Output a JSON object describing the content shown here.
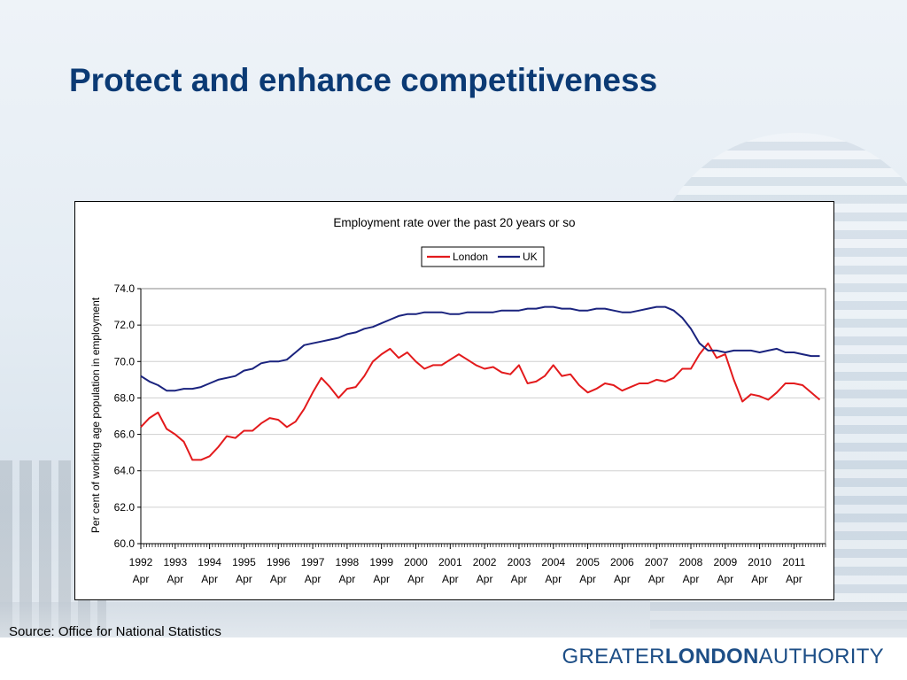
{
  "slide": {
    "title": "Protect and enhance competitiveness",
    "source": "Source: Office for National Statistics",
    "logo": {
      "part1": "GREATER",
      "part2": "LONDON",
      "part3": "AUTHORITY"
    }
  },
  "colors": {
    "title": "#0b3a74",
    "london": "#e31a1c",
    "uk": "#1a237e",
    "logo": "#1d4e86"
  },
  "chart_data": {
    "type": "line",
    "title": "Employment rate over the past 20 years or so",
    "xlabel": "",
    "ylabel": "Per cent of working age population in employment",
    "ylim": [
      60,
      74
    ],
    "yticks": [
      "60.0",
      "62.0",
      "64.0",
      "66.0",
      "68.0",
      "70.0",
      "72.0",
      "74.0"
    ],
    "xticks": [
      "1992",
      "1993",
      "1994",
      "1995",
      "1996",
      "1997",
      "1998",
      "1999",
      "2000",
      "2001",
      "2002",
      "2003",
      "2004",
      "2005",
      "2006",
      "2007",
      "2008",
      "2009",
      "2010",
      "2011"
    ],
    "xtick_sublabel": "Apr",
    "legend_position": "top",
    "x_start": "1992 Apr",
    "x_step": "quarter",
    "series": [
      {
        "name": "London",
        "color": "#e31a1c",
        "values": [
          66.4,
          66.9,
          67.2,
          66.3,
          66.0,
          65.6,
          64.6,
          64.6,
          64.8,
          65.3,
          65.9,
          65.8,
          66.2,
          66.2,
          66.6,
          66.9,
          66.8,
          66.4,
          66.7,
          67.4,
          68.3,
          69.1,
          68.6,
          68.0,
          68.5,
          68.6,
          69.2,
          70.0,
          70.4,
          70.7,
          70.2,
          70.5,
          70.0,
          69.6,
          69.8,
          69.8,
          70.1,
          70.4,
          70.1,
          69.8,
          69.6,
          69.7,
          69.4,
          69.3,
          69.8,
          68.8,
          68.9,
          69.2,
          69.8,
          69.2,
          69.3,
          68.7,
          68.3,
          68.5,
          68.8,
          68.7,
          68.4,
          68.6,
          68.8,
          68.8,
          69.0,
          68.9,
          69.1,
          69.6,
          69.6,
          70.4,
          71.0,
          70.2,
          70.4,
          69.0,
          67.8,
          68.2,
          68.1,
          67.9,
          68.3,
          68.8,
          68.8,
          68.7,
          68.3,
          67.9
        ]
      },
      {
        "name": "UK",
        "color": "#1a237e",
        "values": [
          69.2,
          68.9,
          68.7,
          68.4,
          68.4,
          68.5,
          68.5,
          68.6,
          68.8,
          69.0,
          69.1,
          69.2,
          69.5,
          69.6,
          69.9,
          70.0,
          70.0,
          70.1,
          70.5,
          70.9,
          71.0,
          71.1,
          71.2,
          71.3,
          71.5,
          71.6,
          71.8,
          71.9,
          72.1,
          72.3,
          72.5,
          72.6,
          72.6,
          72.7,
          72.7,
          72.7,
          72.6,
          72.6,
          72.7,
          72.7,
          72.7,
          72.7,
          72.8,
          72.8,
          72.8,
          72.9,
          72.9,
          73.0,
          73.0,
          72.9,
          72.9,
          72.8,
          72.8,
          72.9,
          72.9,
          72.8,
          72.7,
          72.7,
          72.8,
          72.9,
          73.0,
          73.0,
          72.8,
          72.4,
          71.8,
          71.0,
          70.6,
          70.6,
          70.5,
          70.6,
          70.6,
          70.6,
          70.5,
          70.6,
          70.7,
          70.5,
          70.5,
          70.4,
          70.3,
          70.3
        ]
      }
    ]
  }
}
